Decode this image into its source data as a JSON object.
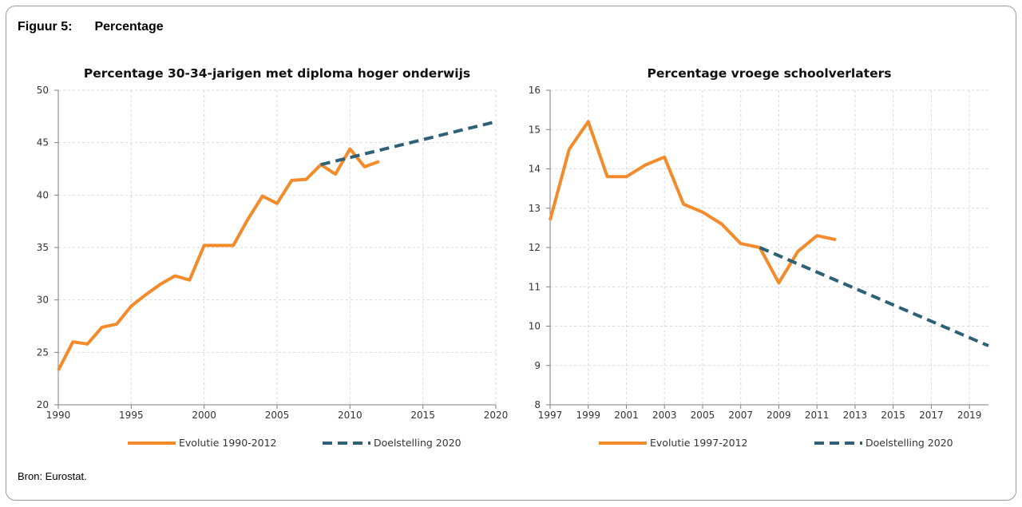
{
  "figure": {
    "label": "Figuur 5:",
    "title": "Percentage",
    "source": "Bron: Eurostat."
  },
  "colors": {
    "evolution": "#F38B2A",
    "target": "#2E6177",
    "grid": "#d9d9d9",
    "axis": "#7f7f7f"
  },
  "chart_data": [
    {
      "type": "line",
      "title": "Percentage 30-34-jarigen met diploma hoger onderwijs",
      "xlabel": "",
      "ylabel": "",
      "xlim": [
        1990,
        2020
      ],
      "ylim": [
        20,
        50
      ],
      "xticks": [
        1990,
        1995,
        2000,
        2005,
        2010,
        2015,
        2020
      ],
      "yticks": [
        20,
        25,
        30,
        35,
        40,
        45,
        50
      ],
      "grid": true,
      "legend_position": "bottom",
      "series": [
        {
          "name": "Evolutie 1990-2012",
          "style": "solid",
          "x": [
            1990,
            1991,
            1992,
            1993,
            1994,
            1995,
            1996,
            1997,
            1998,
            1999,
            2000,
            2001,
            2002,
            2003,
            2004,
            2005,
            2006,
            2007,
            2008,
            2009,
            2010,
            2011,
            2012
          ],
          "y": [
            23.3,
            26.0,
            25.8,
            27.4,
            27.7,
            29.4,
            30.5,
            31.5,
            32.3,
            31.9,
            35.2,
            35.2,
            35.2,
            37.7,
            39.9,
            39.2,
            41.4,
            41.5,
            42.9,
            42.0,
            44.4,
            42.7,
            43.2
          ]
        },
        {
          "name": "Doelstelling 2020",
          "style": "dashed",
          "x": [
            2008,
            2020
          ],
          "y": [
            42.9,
            47.0
          ]
        }
      ]
    },
    {
      "type": "line",
      "title": "Percentage vroege schoolverlaters",
      "xlabel": "",
      "ylabel": "",
      "xlim": [
        1997,
        2020
      ],
      "ylim": [
        8,
        16
      ],
      "xticks": [
        1997,
        1999,
        2001,
        2003,
        2005,
        2007,
        2009,
        2011,
        2013,
        2015,
        2017,
        2019
      ],
      "yticks": [
        8,
        9,
        10,
        11,
        12,
        13,
        14,
        15,
        16
      ],
      "grid": true,
      "legend_position": "bottom",
      "series": [
        {
          "name": "Evolutie 1997-2012",
          "style": "solid",
          "x": [
            1997,
            1998,
            1999,
            2000,
            2001,
            2002,
            2003,
            2004,
            2005,
            2006,
            2007,
            2008,
            2009,
            2010,
            2011,
            2012
          ],
          "y": [
            12.7,
            14.5,
            15.2,
            13.8,
            13.8,
            14.1,
            14.3,
            13.1,
            12.9,
            12.6,
            12.1,
            12.0,
            11.1,
            11.9,
            12.3,
            12.2
          ]
        },
        {
          "name": "Doelstelling 2020",
          "style": "dashed",
          "x": [
            2008,
            2020
          ],
          "y": [
            12.0,
            9.5
          ]
        }
      ]
    }
  ]
}
